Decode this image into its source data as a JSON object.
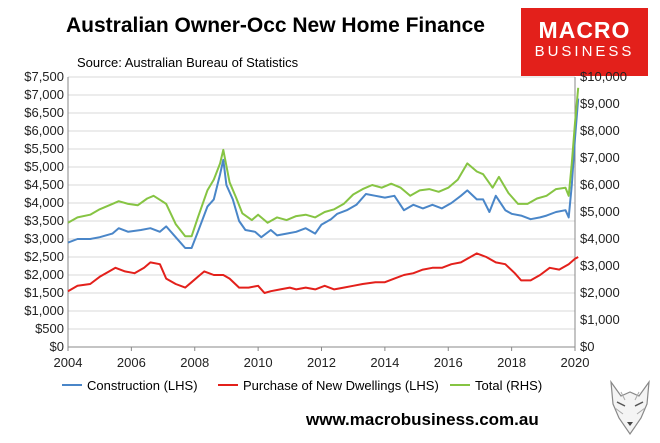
{
  "title": "Australian Owner-Occ New Home Finance",
  "subtitle": "Source: Australian Bureau of Statistics",
  "logo": {
    "top": "MACRO",
    "bottom": "BUSINESS",
    "color": "#e3201b"
  },
  "footer_url": "www.macrobusiness.com.au",
  "chart_data": {
    "type": "line",
    "x_ticks": [
      "2004",
      "2006",
      "2008",
      "2010",
      "2012",
      "2014",
      "2016",
      "2018",
      "2020"
    ],
    "xlim": [
      2004,
      2020
    ],
    "y_left_ticks": [
      "$0",
      "$500",
      "$1,000",
      "$1,500",
      "$2,000",
      "$2,500",
      "$3,000",
      "$3,500",
      "$4,000",
      "$4,500",
      "$5,000",
      "$5,500",
      "$6,000",
      "$6,500",
      "$7,000",
      "$7,500"
    ],
    "y_left_lim": [
      0,
      7500
    ],
    "y_right_ticks": [
      "$0",
      "$1,000",
      "$2,000",
      "$3,000",
      "$4,000",
      "$5,000",
      "$6,000",
      "$7,000",
      "$8,000",
      "$9,000",
      "$10,000"
    ],
    "y_right_lim": [
      0,
      10000
    ],
    "legend_position": "bottom",
    "series": [
      {
        "name": "Construction (LHS)",
        "axis": "left",
        "color": "#4a86c8",
        "points": [
          [
            2004.0,
            2900
          ],
          [
            2004.3,
            3000
          ],
          [
            2004.7,
            3000
          ],
          [
            2005.0,
            3050
          ],
          [
            2005.4,
            3150
          ],
          [
            2005.6,
            3300
          ],
          [
            2005.9,
            3200
          ],
          [
            2006.3,
            3250
          ],
          [
            2006.6,
            3300
          ],
          [
            2006.9,
            3200
          ],
          [
            2007.1,
            3350
          ],
          [
            2007.4,
            3050
          ],
          [
            2007.7,
            2750
          ],
          [
            2007.9,
            2750
          ],
          [
            2008.1,
            3200
          ],
          [
            2008.4,
            3900
          ],
          [
            2008.6,
            4100
          ],
          [
            2008.8,
            4800
          ],
          [
            2008.9,
            5200
          ],
          [
            2009.0,
            4500
          ],
          [
            2009.2,
            4100
          ],
          [
            2009.4,
            3500
          ],
          [
            2009.6,
            3250
          ],
          [
            2009.9,
            3200
          ],
          [
            2010.1,
            3050
          ],
          [
            2010.4,
            3250
          ],
          [
            2010.6,
            3100
          ],
          [
            2010.9,
            3150
          ],
          [
            2011.2,
            3200
          ],
          [
            2011.5,
            3300
          ],
          [
            2011.8,
            3150
          ],
          [
            2012.0,
            3400
          ],
          [
            2012.3,
            3550
          ],
          [
            2012.5,
            3700
          ],
          [
            2012.8,
            3800
          ],
          [
            2013.1,
            3950
          ],
          [
            2013.4,
            4250
          ],
          [
            2013.7,
            4200
          ],
          [
            2014.0,
            4150
          ],
          [
            2014.3,
            4200
          ],
          [
            2014.6,
            3800
          ],
          [
            2014.9,
            3950
          ],
          [
            2015.2,
            3850
          ],
          [
            2015.5,
            3950
          ],
          [
            2015.8,
            3850
          ],
          [
            2016.1,
            4000
          ],
          [
            2016.4,
            4200
          ],
          [
            2016.6,
            4350
          ],
          [
            2016.9,
            4100
          ],
          [
            2017.1,
            4100
          ],
          [
            2017.3,
            3750
          ],
          [
            2017.5,
            4200
          ],
          [
            2017.8,
            3800
          ],
          [
            2018.0,
            3700
          ],
          [
            2018.3,
            3650
          ],
          [
            2018.6,
            3550
          ],
          [
            2018.9,
            3600
          ],
          [
            2019.1,
            3650
          ],
          [
            2019.4,
            3750
          ],
          [
            2019.7,
            3800
          ],
          [
            2019.8,
            3600
          ],
          [
            2019.9,
            4500
          ],
          [
            2020.0,
            5800
          ],
          [
            2020.1,
            6900
          ]
        ]
      },
      {
        "name": "Purchase of New Dwellings (LHS)",
        "axis": "left",
        "color": "#e3201b",
        "points": [
          [
            2004.0,
            1550
          ],
          [
            2004.3,
            1700
          ],
          [
            2004.7,
            1750
          ],
          [
            2005.0,
            1950
          ],
          [
            2005.3,
            2100
          ],
          [
            2005.5,
            2200
          ],
          [
            2005.8,
            2100
          ],
          [
            2006.1,
            2050
          ],
          [
            2006.4,
            2200
          ],
          [
            2006.6,
            2350
          ],
          [
            2006.9,
            2300
          ],
          [
            2007.1,
            1900
          ],
          [
            2007.4,
            1750
          ],
          [
            2007.7,
            1650
          ],
          [
            2007.9,
            1800
          ],
          [
            2008.1,
            1950
          ],
          [
            2008.3,
            2100
          ],
          [
            2008.6,
            2000
          ],
          [
            2008.9,
            2000
          ],
          [
            2009.1,
            1900
          ],
          [
            2009.4,
            1650
          ],
          [
            2009.7,
            1650
          ],
          [
            2010.0,
            1700
          ],
          [
            2010.2,
            1500
          ],
          [
            2010.4,
            1550
          ],
          [
            2010.7,
            1600
          ],
          [
            2011.0,
            1650
          ],
          [
            2011.2,
            1600
          ],
          [
            2011.5,
            1650
          ],
          [
            2011.8,
            1600
          ],
          [
            2012.1,
            1700
          ],
          [
            2012.4,
            1600
          ],
          [
            2012.7,
            1650
          ],
          [
            2013.0,
            1700
          ],
          [
            2013.3,
            1750
          ],
          [
            2013.7,
            1800
          ],
          [
            2014.0,
            1800
          ],
          [
            2014.3,
            1900
          ],
          [
            2014.6,
            2000
          ],
          [
            2014.9,
            2050
          ],
          [
            2015.2,
            2150
          ],
          [
            2015.5,
            2200
          ],
          [
            2015.8,
            2200
          ],
          [
            2016.1,
            2300
          ],
          [
            2016.4,
            2350
          ],
          [
            2016.7,
            2500
          ],
          [
            2016.9,
            2600
          ],
          [
            2017.2,
            2500
          ],
          [
            2017.5,
            2350
          ],
          [
            2017.8,
            2300
          ],
          [
            2018.1,
            2050
          ],
          [
            2018.3,
            1850
          ],
          [
            2018.6,
            1850
          ],
          [
            2018.9,
            2000
          ],
          [
            2019.2,
            2200
          ],
          [
            2019.5,
            2150
          ],
          [
            2019.8,
            2300
          ],
          [
            2020.0,
            2450
          ],
          [
            2020.1,
            2500
          ]
        ]
      },
      {
        "name": "Total (RHS)",
        "axis": "right",
        "color": "#86c443",
        "points": [
          [
            2004.0,
            4600
          ],
          [
            2004.3,
            4800
          ],
          [
            2004.7,
            4900
          ],
          [
            2005.0,
            5100
          ],
          [
            2005.4,
            5300
          ],
          [
            2005.6,
            5400
          ],
          [
            2005.9,
            5300
          ],
          [
            2006.2,
            5250
          ],
          [
            2006.5,
            5500
          ],
          [
            2006.7,
            5600
          ],
          [
            2006.9,
            5450
          ],
          [
            2007.1,
            5300
          ],
          [
            2007.4,
            4550
          ],
          [
            2007.7,
            4100
          ],
          [
            2007.9,
            4100
          ],
          [
            2008.1,
            4800
          ],
          [
            2008.4,
            5800
          ],
          [
            2008.6,
            6200
          ],
          [
            2008.8,
            6800
          ],
          [
            2008.9,
            7300
          ],
          [
            2009.1,
            6100
          ],
          [
            2009.3,
            5550
          ],
          [
            2009.5,
            4950
          ],
          [
            2009.8,
            4700
          ],
          [
            2010.0,
            4900
          ],
          [
            2010.3,
            4600
          ],
          [
            2010.6,
            4800
          ],
          [
            2010.9,
            4700
          ],
          [
            2011.2,
            4850
          ],
          [
            2011.5,
            4900
          ],
          [
            2011.8,
            4800
          ],
          [
            2012.1,
            5000
          ],
          [
            2012.4,
            5100
          ],
          [
            2012.7,
            5300
          ],
          [
            2013.0,
            5650
          ],
          [
            2013.3,
            5850
          ],
          [
            2013.6,
            6000
          ],
          [
            2013.9,
            5900
          ],
          [
            2014.2,
            6050
          ],
          [
            2014.5,
            5900
          ],
          [
            2014.8,
            5600
          ],
          [
            2015.1,
            5800
          ],
          [
            2015.4,
            5850
          ],
          [
            2015.7,
            5750
          ],
          [
            2016.0,
            5900
          ],
          [
            2016.3,
            6200
          ],
          [
            2016.6,
            6800
          ],
          [
            2016.9,
            6500
          ],
          [
            2017.1,
            6400
          ],
          [
            2017.4,
            5900
          ],
          [
            2017.6,
            6300
          ],
          [
            2017.9,
            5700
          ],
          [
            2018.2,
            5300
          ],
          [
            2018.5,
            5300
          ],
          [
            2018.8,
            5500
          ],
          [
            2019.1,
            5600
          ],
          [
            2019.4,
            5850
          ],
          [
            2019.7,
            5900
          ],
          [
            2019.8,
            5600
          ],
          [
            2019.9,
            6800
          ],
          [
            2020.0,
            8300
          ],
          [
            2020.1,
            9600
          ]
        ]
      }
    ]
  }
}
